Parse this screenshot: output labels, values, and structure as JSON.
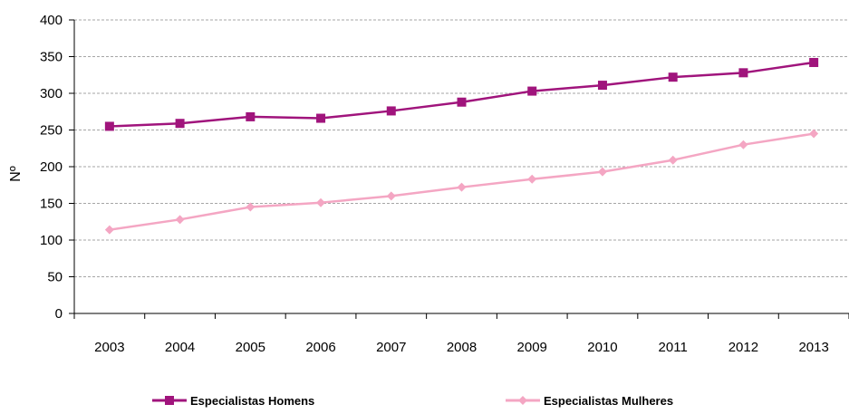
{
  "chart_data": {
    "type": "line",
    "title": "",
    "xlabel": "",
    "ylabel": "Nº",
    "categories": [
      "2003",
      "2004",
      "2005",
      "2006",
      "2007",
      "2008",
      "2009",
      "2010",
      "2011",
      "2012",
      "2013"
    ],
    "ylim": [
      0,
      400
    ],
    "yticks": [
      "0",
      "50",
      "100",
      "150",
      "200",
      "250",
      "300",
      "350",
      "400"
    ],
    "grid": true,
    "legend_position": "bottom",
    "series": [
      {
        "name": "Especialistas Homens",
        "color": "#A0147C",
        "marker": "square",
        "values": [
          255,
          259,
          268,
          266,
          276,
          288,
          303,
          311,
          322,
          328,
          342
        ]
      },
      {
        "name": "Especialistas Mulheres",
        "color": "#F4A6C3",
        "marker": "diamond",
        "values": [
          114,
          128,
          145,
          151,
          160,
          172,
          183,
          193,
          209,
          230,
          245
        ]
      }
    ]
  }
}
